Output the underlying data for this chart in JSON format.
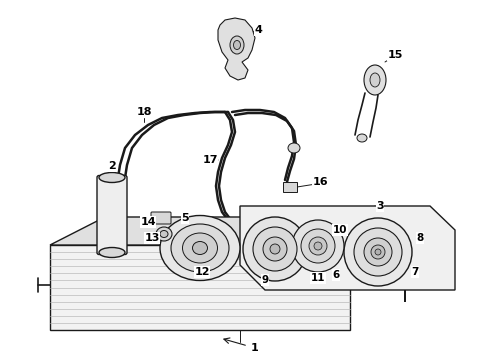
{
  "bg_color": "#ffffff",
  "lc": "#1a1a1a",
  "lc_gray": "#888888",
  "lc_light": "#cccccc",
  "figsize": [
    4.9,
    3.6
  ],
  "dpi": 100
}
